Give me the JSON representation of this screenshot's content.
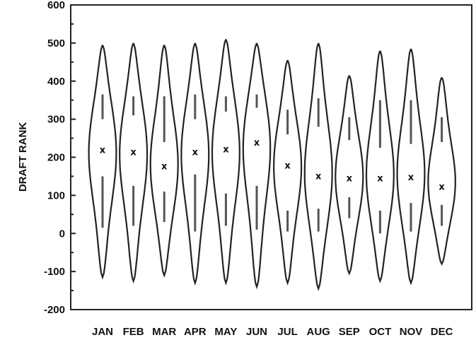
{
  "chart_data": {
    "type": "violin",
    "title": "",
    "xlabel": "",
    "ylabel": "DRAFT RANK",
    "ylim": [
      -200,
      600
    ],
    "yticks": [
      -200,
      -100,
      0,
      100,
      200,
      300,
      400,
      500,
      600
    ],
    "grid": false,
    "categories": [
      "JAN",
      "FEB",
      "MAR",
      "APR",
      "MAY",
      "JUN",
      "JUL",
      "AUG",
      "SEP",
      "OCT",
      "NOV",
      "DEC"
    ],
    "medians": [
      220,
      215,
      178,
      215,
      222,
      240,
      180,
      152,
      146,
      146,
      149,
      124
    ],
    "violin_min": [
      -115,
      -125,
      -110,
      -130,
      -130,
      -140,
      -130,
      -145,
      -105,
      -125,
      -130,
      -80
    ],
    "violin_max": [
      495,
      500,
      495,
      500,
      510,
      500,
      455,
      500,
      415,
      480,
      485,
      410
    ],
    "whisker_upper": [
      [
        300,
        365
      ],
      [
        310,
        360
      ],
      [
        240,
        360
      ],
      [
        300,
        365
      ],
      [
        320,
        360
      ],
      [
        330,
        365
      ],
      [
        260,
        325
      ],
      [
        280,
        355
      ],
      [
        245,
        305
      ],
      [
        225,
        350
      ],
      [
        235,
        350
      ],
      [
        240,
        305
      ]
    ],
    "whisker_lower": [
      [
        15,
        150
      ],
      [
        20,
        125
      ],
      [
        30,
        110
      ],
      [
        5,
        155
      ],
      [
        20,
        105
      ],
      [
        10,
        125
      ],
      [
        5,
        60
      ],
      [
        5,
        65
      ],
      [
        40,
        95
      ],
      [
        0,
        60
      ],
      [
        5,
        80
      ],
      [
        20,
        75
      ]
    ],
    "median_marker": "x"
  }
}
